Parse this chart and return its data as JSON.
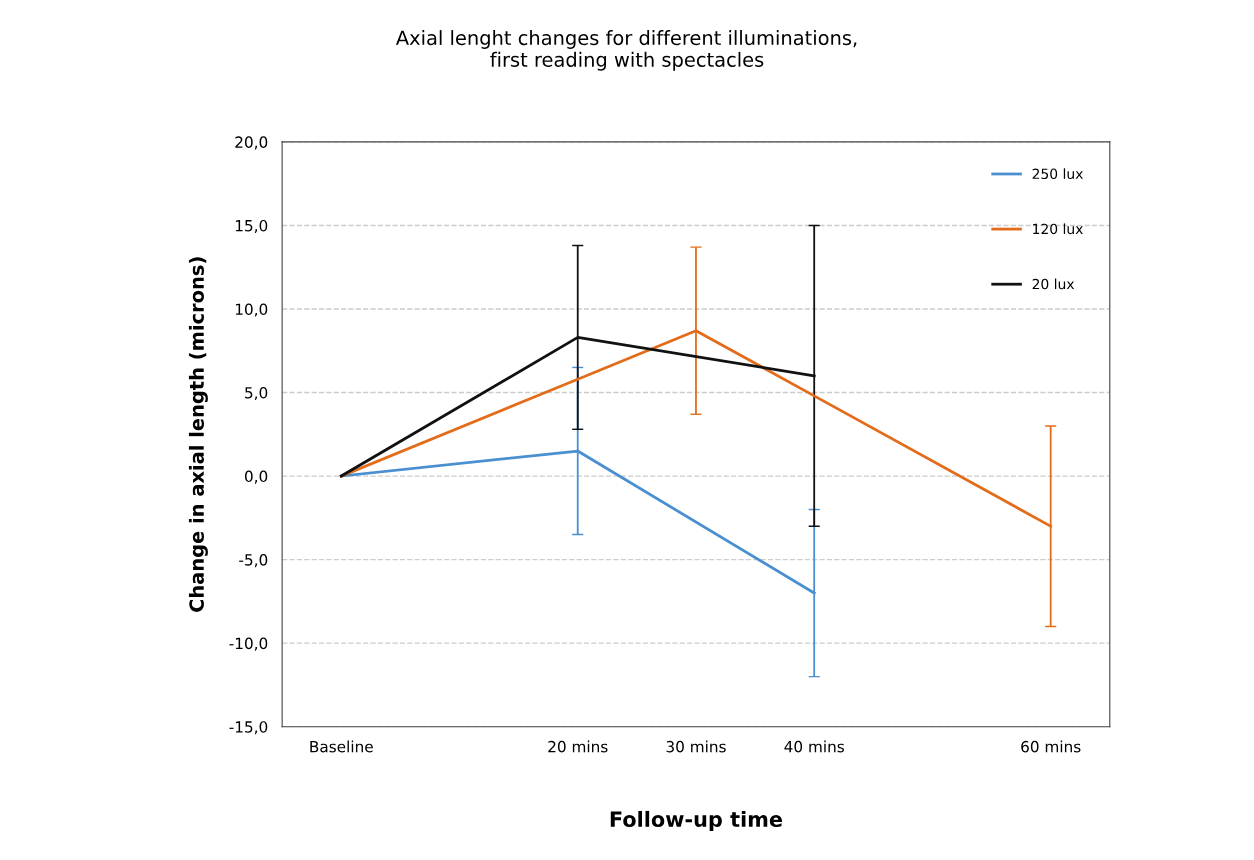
{
  "chart_data": {
    "type": "line",
    "title": "Axial lenght changes for different illuminations,\nfirst reading with spectacles",
    "xlabel": "Follow-up time",
    "ylabel": "Change in axial length (microns)",
    "xlim": [
      -5,
      65
    ],
    "xticks": [
      {
        "value": 0,
        "label": "Baseline"
      },
      {
        "value": 20,
        "label": "20 mins"
      },
      {
        "value": 30,
        "label": "30 mins"
      },
      {
        "value": 40,
        "label": "40 mins"
      },
      {
        "value": 60,
        "label": "60 mins"
      }
    ],
    "ylim": [
      -15,
      20
    ],
    "yticks": [
      {
        "value": -15,
        "label": "-15,0"
      },
      {
        "value": -10,
        "label": "-10,0"
      },
      {
        "value": -5,
        "label": "-5,0"
      },
      {
        "value": 0,
        "label": "0,0"
      },
      {
        "value": 5,
        "label": "5,0"
      },
      {
        "value": 10,
        "label": "10,0"
      },
      {
        "value": 15,
        "label": "15,0"
      },
      {
        "value": 20,
        "label": "20,0"
      }
    ],
    "grid": "y",
    "legend": "top right",
    "marker": "none",
    "line_style": "solid",
    "series": [
      {
        "name": "250 lux",
        "color": "#4a8fd0",
        "x": [
          0,
          20,
          40
        ],
        "values": [
          0,
          1.5,
          -7.0
        ],
        "errors": [
          null,
          5,
          5
        ]
      },
      {
        "name": "120 lux",
        "color": "#e36c1a",
        "x": [
          0,
          20,
          30,
          40,
          60
        ],
        "values": [
          0,
          5.8,
          8.7,
          4.8,
          -3.0
        ],
        "errors": [
          null,
          null,
          5,
          null,
          6
        ]
      },
      {
        "name": "20 lux",
        "color": "#111111",
        "x": [
          0,
          20,
          40
        ],
        "values": [
          0,
          8.3,
          6.0
        ],
        "errors": [
          null,
          5.5,
          9
        ]
      }
    ]
  }
}
